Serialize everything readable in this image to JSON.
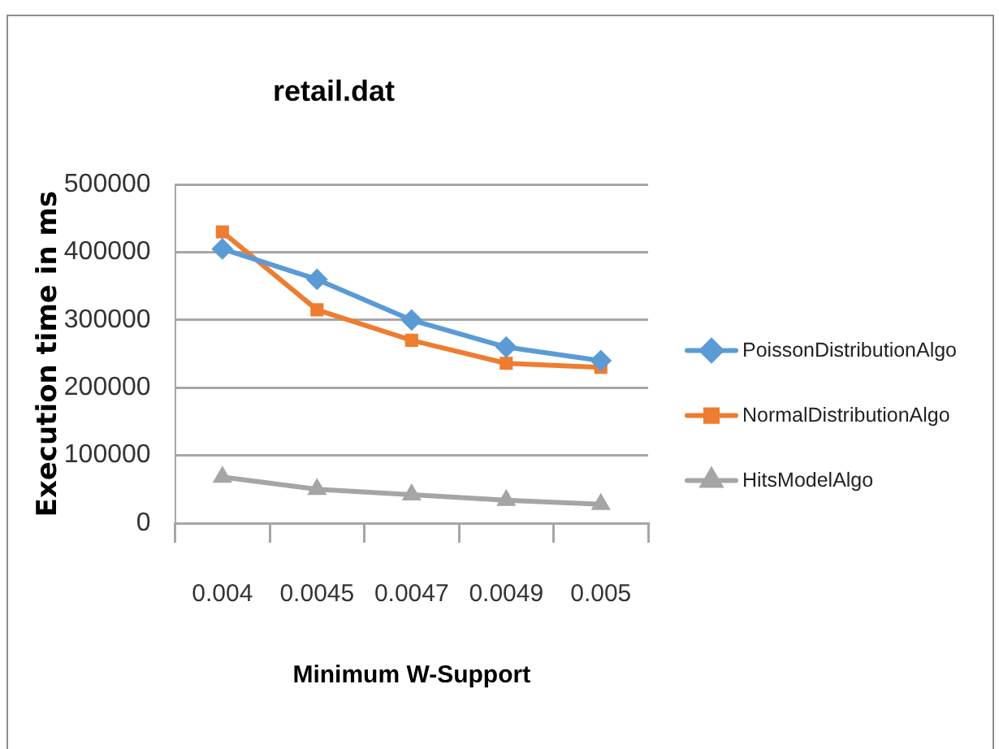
{
  "chart_data": {
    "type": "line",
    "title": "retail.dat",
    "xlabel": "Minimum W-Support",
    "ylabel": "Execution time in ms",
    "categories": [
      "0.004",
      "0.0045",
      "0.0047",
      "0.0049",
      "0.005"
    ],
    "series": [
      {
        "name": "PoissonDistributionAlgo",
        "color": "#5b9bd5",
        "marker": "diamond",
        "values": [
          405000,
          360000,
          300000,
          260000,
          240000
        ]
      },
      {
        "name": "NormalDistributionAlgo",
        "color": "#ed7d31",
        "marker": "square",
        "values": [
          430000,
          315000,
          270000,
          236000,
          230000
        ]
      },
      {
        "name": "HitsModelAlgo",
        "color": "#a5a5a5",
        "marker": "triangle",
        "values": [
          68000,
          50000,
          42000,
          34000,
          28000
        ]
      }
    ],
    "ylim": [
      0,
      500000
    ],
    "yticks": [
      0,
      100000,
      200000,
      300000,
      400000,
      500000
    ],
    "grid": "y",
    "legend": "right",
    "line_style": "solid"
  }
}
